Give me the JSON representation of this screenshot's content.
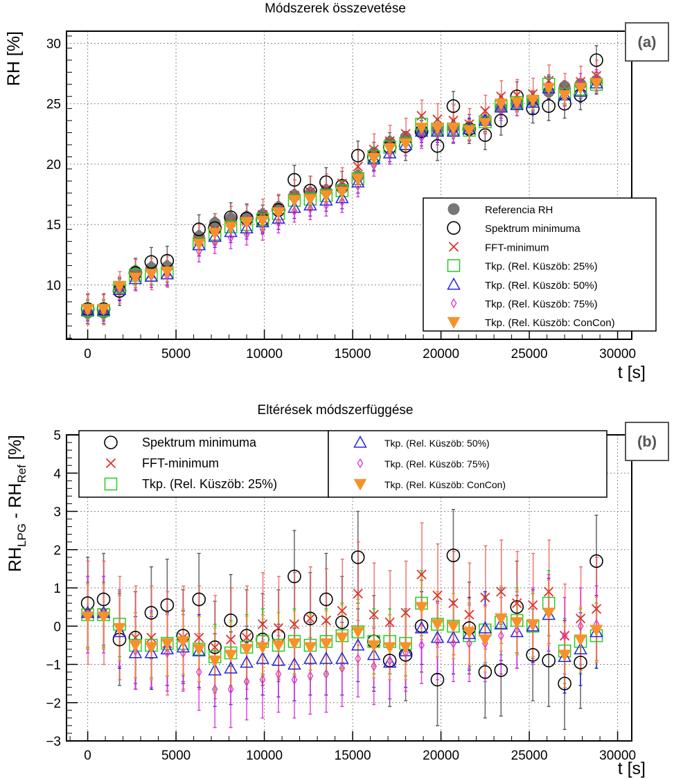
{
  "colors": {
    "referencia": "#777777",
    "spektrum": "#000000",
    "fft": "#e03030",
    "rel25": "#22cc22",
    "rel50": "#2222dd",
    "rel75": "#dd33dd",
    "concon": "#f7922a",
    "err_spektrum": "#555555",
    "err_fft": "#ee6666"
  },
  "chart_data": [
    {
      "id": "a",
      "type": "scatter",
      "title": "Módszerek összevetése",
      "panel_label": "(a)",
      "xlabel": "t [s]",
      "ylabel": "RH [%]",
      "xlim": [
        -1200,
        30800
      ],
      "ylim": [
        5.5,
        31
      ],
      "xticks": [
        0,
        5000,
        10000,
        15000,
        20000,
        25000,
        30000
      ],
      "yticks": [
        10,
        15,
        20,
        25,
        30
      ],
      "legend_position": "bottom-right",
      "legend": [
        {
          "key": "referencia",
          "label": "Referencia RH"
        },
        {
          "key": "spektrum",
          "label": "Spektrum minimuma"
        },
        {
          "key": "fft",
          "label": "FFT-minimum"
        },
        {
          "key": "rel25",
          "label": "Tkp. (Rel. Küszöb: 25%)"
        },
        {
          "key": "rel50",
          "label": "Tkp. (Rel. Küszöb: 50%)"
        },
        {
          "key": "rel75",
          "label": "Tkp. (Rel. Küszöb: 75%)"
        },
        {
          "key": "concon",
          "label": "Tkp. (Rel. Küszöb: ConCon)"
        }
      ],
      "x": [
        0,
        900,
        1800,
        2700,
        3600,
        4500,
        6300,
        7200,
        8100,
        9000,
        9900,
        10800,
        11700,
        12600,
        13500,
        14400,
        15300,
        16200,
        17100,
        18000,
        18900,
        19800,
        20700,
        21600,
        22500,
        23400,
        24300,
        25200,
        26100,
        27000,
        27900,
        28800
      ],
      "series": [
        {
          "key": "referencia",
          "marker": "dot",
          "values": [
            7.7,
            7.7,
            9.8,
            11.1,
            11.4,
            11.5,
            14.0,
            15.1,
            15.5,
            15.6,
            15.8,
            16.4,
            17.4,
            17.6,
            17.8,
            18.0,
            19.0,
            20.9,
            21.8,
            22.2,
            22.7,
            22.9,
            23.0,
            23.0,
            23.6,
            24.7,
            25.0,
            25.2,
            26.0,
            26.4,
            26.6,
            26.9
          ],
          "yerr": 0.5
        },
        {
          "key": "spektrum",
          "marker": "circle",
          "values": [
            8.0,
            8.0,
            9.5,
            11.0,
            11.9,
            12.0,
            14.6,
            14.7,
            15.6,
            15.5,
            15.4,
            16.2,
            18.7,
            17.8,
            18.5,
            18.2,
            20.7,
            20.6,
            21.4,
            21.5,
            22.7,
            21.5,
            24.8,
            22.9,
            22.4,
            23.6,
            25.6,
            24.6,
            24.8,
            25.0,
            25.7,
            28.6
          ],
          "yerr": 1.2
        },
        {
          "key": "fft",
          "marker": "x",
          "values": [
            8.0,
            8.0,
            9.8,
            10.8,
            10.9,
            11.1,
            13.7,
            14.6,
            15.2,
            15.3,
            15.8,
            16.2,
            17.4,
            17.7,
            17.9,
            18.4,
            19.8,
            21.2,
            21.9,
            22.5,
            24.0,
            23.7,
            23.6,
            23.3,
            24.4,
            25.6,
            25.7,
            25.8,
            26.9,
            26.2,
            26.8,
            27.3
          ],
          "yerr": 1.3
        },
        {
          "key": "rel25",
          "marker": "square",
          "values": [
            7.9,
            7.9,
            9.8,
            10.8,
            10.8,
            11.0,
            13.4,
            14.2,
            14.8,
            15.0,
            15.4,
            15.9,
            17.0,
            17.1,
            17.4,
            17.8,
            18.8,
            20.6,
            21.4,
            21.7,
            23.3,
            22.9,
            22.9,
            22.8,
            23.5,
            24.8,
            25.1,
            25.2,
            26.6,
            25.8,
            26.2,
            26.6
          ],
          "yerr": 0.8
        },
        {
          "key": "rel50",
          "marker": "triangle",
          "values": [
            7.9,
            7.9,
            9.6,
            10.5,
            10.7,
            10.9,
            13.3,
            14.0,
            14.4,
            14.7,
            15.2,
            15.5,
            16.4,
            16.6,
            17.0,
            17.2,
            18.5,
            20.4,
            20.9,
            21.6,
            22.7,
            22.7,
            22.7,
            22.9,
            23.6,
            24.7,
            24.9,
            25.1,
            26.3,
            25.7,
            26.0,
            26.7
          ],
          "yerr": 0.9
        },
        {
          "key": "rel75",
          "marker": "diamond",
          "values": [
            7.9,
            7.9,
            9.7,
            10.5,
            10.7,
            10.8,
            12.8,
            13.5,
            13.9,
            14.2,
            14.6,
            15.2,
            16.1,
            16.3,
            16.6,
            16.9,
            18.2,
            19.9,
            20.9,
            21.6,
            22.2,
            22.5,
            22.6,
            22.8,
            23.4,
            24.5,
            24.9,
            25.2,
            26.4,
            25.7,
            26.6,
            26.9
          ],
          "yerr": 0.9
        },
        {
          "key": "concon",
          "marker": "tri-down",
          "values": [
            8.0,
            8.0,
            9.9,
            10.6,
            10.9,
            11.1,
            13.4,
            14.3,
            14.8,
            15.2,
            15.3,
            16.0,
            17.0,
            17.1,
            17.4,
            17.7,
            18.8,
            20.5,
            21.3,
            21.7,
            23.0,
            23.0,
            23.0,
            22.8,
            23.4,
            25.0,
            25.1,
            25.3,
            26.3,
            25.7,
            26.3,
            26.7
          ],
          "yerr": 0.8
        }
      ]
    },
    {
      "id": "b",
      "type": "scatter",
      "title": "Eltérések módszerfüggése",
      "panel_label": "(b)",
      "xlabel": "t [s]",
      "ylabel": {
        "base": "RH",
        "sub1": "LPG",
        "mid": " - RH",
        "sub2": "Ref",
        "unit": " [%]"
      },
      "xlim": [
        -1200,
        30800
      ],
      "ylim": [
        -3,
        5
      ],
      "xticks": [
        0,
        5000,
        10000,
        15000,
        20000,
        25000,
        30000
      ],
      "yticks": [
        -3,
        -2,
        -1,
        0,
        1,
        2,
        3,
        4,
        5
      ],
      "legend_position": "top",
      "legend": [
        {
          "key": "spektrum",
          "label": "Spektrum minimuma"
        },
        {
          "key": "fft",
          "label": "FFT-minimum"
        },
        {
          "key": "rel25",
          "label": "Tkp. (Rel. Küszöb: 25%)"
        },
        {
          "key": "rel50",
          "label": "Tkp. (Rel. Küszöb: 50%)"
        },
        {
          "key": "rel75",
          "label": "Tkp. (Rel. Küszöb: 75%)"
        },
        {
          "key": "concon",
          "label": "Tkp. (Rel. Küszöb: ConCon)"
        }
      ],
      "x": [
        0,
        900,
        1800,
        2700,
        3600,
        4500,
        5400,
        6300,
        7200,
        8100,
        9000,
        9900,
        10800,
        11700,
        12600,
        13500,
        14400,
        15300,
        16200,
        17100,
        18000,
        18900,
        19800,
        20700,
        21600,
        22500,
        23400,
        24300,
        25200,
        26100,
        27000,
        27900,
        28800
      ],
      "series": [
        {
          "key": "spektrum",
          "marker": "circle",
          "values": [
            0.6,
            0.7,
            -0.35,
            -0.3,
            0.35,
            0.55,
            -0.25,
            0.7,
            -0.55,
            0.15,
            -0.25,
            -0.35,
            -0.25,
            1.3,
            0.2,
            0.7,
            0.1,
            1.8,
            -0.4,
            -0.9,
            -0.75,
            0.0,
            -1.4,
            1.85,
            -0.05,
            -1.2,
            -1.15,
            0.5,
            -0.75,
            -0.9,
            -1.5,
            -0.95,
            1.7
          ],
          "yerr": 1.2
        },
        {
          "key": "fft",
          "marker": "x",
          "values": [
            0.35,
            0.35,
            -0.05,
            -0.3,
            -0.3,
            -0.45,
            -0.3,
            -0.3,
            -0.55,
            -0.35,
            -0.3,
            0.05,
            -0.05,
            0.05,
            0.2,
            0.15,
            0.4,
            0.85,
            0.3,
            0.1,
            0.35,
            1.35,
            0.8,
            0.6,
            0.3,
            0.75,
            0.9,
            0.6,
            0.55,
            0.9,
            -0.25,
            0.2,
            0.45
          ],
          "yerr": 1.35
        },
        {
          "key": "rel25",
          "marker": "square",
          "values": [
            0.3,
            0.3,
            0.05,
            -0.5,
            -0.5,
            -0.45,
            -0.45,
            -0.6,
            -0.8,
            -0.7,
            -0.55,
            -0.4,
            -0.5,
            -0.4,
            -0.5,
            -0.4,
            -0.25,
            -0.15,
            -0.4,
            -0.4,
            -0.45,
            0.6,
            0.05,
            0.0,
            -0.25,
            -0.1,
            0.1,
            0.15,
            0.0,
            0.6,
            -0.65,
            -0.4,
            -0.25
          ],
          "yerr": 0.85
        },
        {
          "key": "rel50",
          "marker": "triangle",
          "values": [
            0.35,
            0.35,
            -0.15,
            -0.7,
            -0.7,
            -0.6,
            -0.55,
            -0.65,
            -1.15,
            -1.1,
            -0.95,
            -0.85,
            -0.9,
            -1.0,
            -0.85,
            -0.85,
            -0.85,
            -0.5,
            -0.75,
            -0.95,
            -0.65,
            -0.05,
            -0.3,
            -0.3,
            -0.2,
            -0.05,
            0.05,
            -0.15,
            0.0,
            0.3,
            -0.8,
            -0.6,
            -0.15
          ],
          "yerr": 0.95
        },
        {
          "key": "rel75",
          "marker": "diamond",
          "values": [
            0.3,
            0.3,
            -0.05,
            -0.65,
            -0.6,
            -0.7,
            -0.7,
            -1.2,
            -1.65,
            -1.65,
            -1.45,
            -1.4,
            -1.25,
            -1.4,
            -1.3,
            -1.25,
            -1.1,
            -0.85,
            -1.05,
            -0.9,
            -0.7,
            -0.5,
            -0.4,
            -0.45,
            -0.45,
            -0.45,
            -0.25,
            -0.1,
            0.0,
            0.35,
            -0.25,
            0.0,
            0.05
          ],
          "yerr": 1.0
        },
        {
          "key": "concon",
          "marker": "tri-down",
          "values": [
            0.25,
            0.25,
            -0.05,
            -0.5,
            -0.55,
            -0.45,
            -0.4,
            -0.6,
            -0.9,
            -0.75,
            -0.6,
            -0.55,
            -0.5,
            -0.45,
            -0.55,
            -0.45,
            -0.3,
            -0.15,
            -0.5,
            -0.55,
            -0.55,
            0.5,
            0.05,
            0.0,
            -0.15,
            -0.35,
            0.2,
            0.1,
            0.05,
            0.35,
            -0.75,
            -0.35,
            -0.1
          ],
          "yerr": 0.85
        }
      ]
    }
  ]
}
